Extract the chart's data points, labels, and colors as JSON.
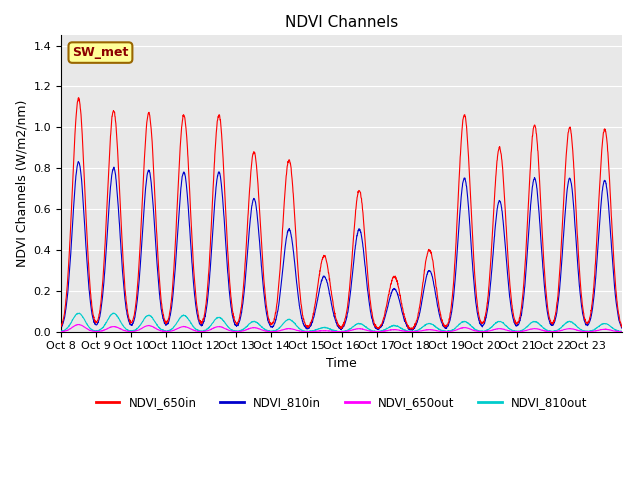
{
  "title": "NDVI Channels",
  "ylabel": "NDVI Channels (W/m2/nm)",
  "xlabel": "Time",
  "annotation": "SW_met",
  "ylim": [
    0,
    1.45
  ],
  "yticks": [
    0.0,
    0.2,
    0.4,
    0.6,
    0.8,
    1.0,
    1.2,
    1.4
  ],
  "xtick_labels": [
    "Oct 8",
    "Oct 9",
    "Oct 10",
    "Oct 11",
    "Oct 12",
    "Oct 13",
    "Oct 14",
    "Oct 15",
    "Oct 16",
    "Oct 17",
    "Oct 18",
    "Oct 19",
    "Oct 20",
    "Oct 21",
    "Oct 22",
    "Oct 23"
  ],
  "colors": {
    "NDVI_650in": "#ff0000",
    "NDVI_810in": "#0000cc",
    "NDVI_650out": "#ff00ff",
    "NDVI_810out": "#00cccc"
  },
  "bg_color": "#e8e8e8",
  "peaks_650in": [
    1.14,
    1.08,
    1.07,
    1.06,
    1.06,
    0.88,
    0.84,
    0.37,
    0.69,
    0.27,
    0.4,
    1.06,
    0.9,
    1.01,
    1.0,
    0.99
  ],
  "peaks_810in": [
    0.83,
    0.8,
    0.79,
    0.78,
    0.78,
    0.65,
    0.5,
    0.27,
    0.5,
    0.21,
    0.3,
    0.75,
    0.64,
    0.75,
    0.75,
    0.74
  ],
  "peaks_650out": [
    0.035,
    0.025,
    0.03,
    0.025,
    0.025,
    0.02,
    0.015,
    0.005,
    0.015,
    0.01,
    0.01,
    0.02,
    0.015,
    0.015,
    0.015,
    0.012
  ],
  "peaks_810out": [
    0.09,
    0.09,
    0.08,
    0.08,
    0.07,
    0.05,
    0.06,
    0.02,
    0.04,
    0.03,
    0.04,
    0.05,
    0.05,
    0.05,
    0.05,
    0.04
  ]
}
